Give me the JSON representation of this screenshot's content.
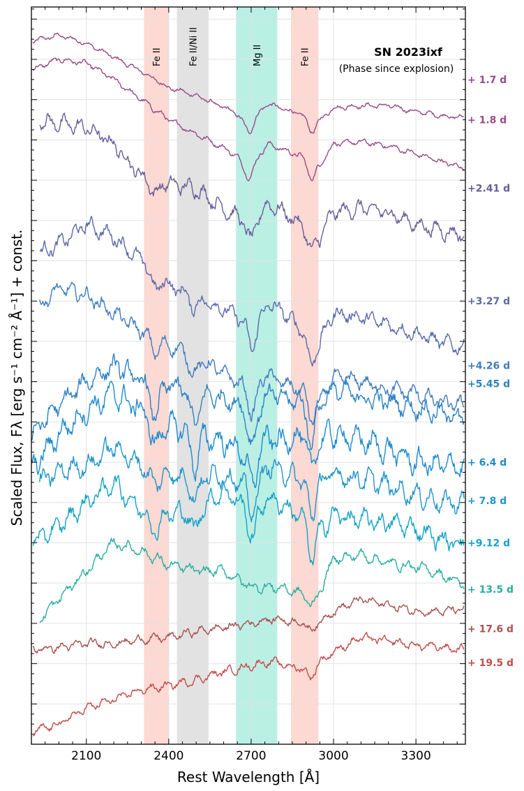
{
  "chart_data": {
    "type": "line",
    "title": "SN 2023ixf",
    "subtitle": "(Phase since explosion)",
    "xlabel": "Rest Wavelength [Å]",
    "ylabel": "Scaled Flux, Fλ [erg s⁻¹ cm⁻² Å⁻¹] + const.",
    "xlim": [
      1900,
      3480
    ],
    "ylim": [
      0,
      18.3
    ],
    "xticks": [
      2100,
      2400,
      2700,
      3000,
      3300
    ],
    "xtick_labels": [
      "2100",
      "2400",
      "2700",
      "3000",
      "3300"
    ],
    "grid": true,
    "bands": [
      {
        "label": "Fe II",
        "x0": 2310,
        "x1": 2400,
        "color": "#fbc9c1"
      },
      {
        "label": "Fe II/Ni II",
        "x0": 2430,
        "x1": 2545,
        "color": "#d6d6d6"
      },
      {
        "label": "Mg II",
        "x0": 2645,
        "x1": 2795,
        "color": "#9de8d8"
      },
      {
        "label": "Fe II",
        "x0": 2845,
        "x1": 2945,
        "color": "#fbc9c1"
      }
    ],
    "series": [
      {
        "name": "+ 1.7 d",
        "color": "#9a4c86",
        "x_start": 1905,
        "knots": [
          [
            1905,
            17.45
          ],
          [
            2000,
            17.6
          ],
          [
            2100,
            17.4
          ],
          [
            2200,
            17.05
          ],
          [
            2300,
            16.7
          ],
          [
            2400,
            16.3
          ],
          [
            2500,
            16.1
          ],
          [
            2600,
            15.8
          ],
          [
            2700,
            15.5
          ],
          [
            2760,
            15.9
          ],
          [
            2800,
            15.8
          ],
          [
            2900,
            15.6
          ],
          [
            2950,
            15.5
          ],
          [
            3000,
            15.8
          ],
          [
            3100,
            15.85
          ],
          [
            3200,
            15.85
          ],
          [
            3300,
            15.7
          ],
          [
            3400,
            15.6
          ],
          [
            3475,
            15.55
          ]
        ],
        "dips": [
          [
            2690,
            0.3,
            25
          ],
          [
            2920,
            0.35,
            20
          ]
        ],
        "noise": 0.07
      },
      {
        "name": "+ 1.8 d",
        "color": "#9a4c86",
        "x_start": 1905,
        "knots": [
          [
            1905,
            16.75
          ],
          [
            2000,
            17.0
          ],
          [
            2100,
            16.9
          ],
          [
            2200,
            16.5
          ],
          [
            2300,
            16.0
          ],
          [
            2400,
            15.5
          ],
          [
            2500,
            15.15
          ],
          [
            2600,
            14.8
          ],
          [
            2700,
            14.4
          ],
          [
            2760,
            14.9
          ],
          [
            2800,
            14.8
          ],
          [
            2900,
            14.55
          ],
          [
            2950,
            14.4
          ],
          [
            3000,
            14.9
          ],
          [
            3100,
            14.95
          ],
          [
            3200,
            14.85
          ],
          [
            3300,
            14.65
          ],
          [
            3400,
            14.45
          ],
          [
            3475,
            14.3
          ]
        ],
        "dips": [
          [
            2690,
            0.35,
            25
          ],
          [
            2920,
            0.45,
            20
          ]
        ],
        "noise": 0.08
      },
      {
        "name": "+2.41 d",
        "color": "#6a5d99",
        "x_start": 1930,
        "knots": [
          [
            1930,
            15.5
          ],
          [
            2000,
            15.4
          ],
          [
            2100,
            15.3
          ],
          [
            2200,
            14.9
          ],
          [
            2300,
            14.1
          ],
          [
            2400,
            13.9
          ],
          [
            2500,
            13.8
          ],
          [
            2600,
            13.3
          ],
          [
            2700,
            12.9
          ],
          [
            2760,
            13.4
          ],
          [
            2800,
            13.3
          ],
          [
            2900,
            12.8
          ],
          [
            2950,
            12.6
          ],
          [
            3000,
            13.2
          ],
          [
            3100,
            13.3
          ],
          [
            3200,
            13.2
          ],
          [
            3300,
            12.9
          ],
          [
            3400,
            12.75
          ],
          [
            3475,
            12.65
          ]
        ],
        "dips": [
          [
            2350,
            0.35,
            20
          ],
          [
            2700,
            0.4,
            22
          ],
          [
            2920,
            0.5,
            18
          ]
        ],
        "noise": 0.22
      },
      {
        "name": "+3.27 d",
        "color": "#5b6aa8",
        "x_start": 1930,
        "knots": [
          [
            1930,
            12.2
          ],
          [
            2000,
            12.4
          ],
          [
            2100,
            12.9
          ],
          [
            2200,
            12.6
          ],
          [
            2300,
            12.0
          ],
          [
            2400,
            11.4
          ],
          [
            2500,
            11.1
          ],
          [
            2600,
            10.8
          ],
          [
            2700,
            10.4
          ],
          [
            2760,
            10.9
          ],
          [
            2800,
            10.8
          ],
          [
            2900,
            10.2
          ],
          [
            2950,
            10.0
          ],
          [
            3000,
            10.7
          ],
          [
            3100,
            10.6
          ],
          [
            3200,
            10.4
          ],
          [
            3300,
            10.2
          ],
          [
            3400,
            9.95
          ],
          [
            3475,
            9.85
          ]
        ],
        "dips": [
          [
            2350,
            0.4,
            20
          ],
          [
            2490,
            0.3,
            20
          ],
          [
            2705,
            0.6,
            22
          ],
          [
            2920,
            0.7,
            18
          ]
        ],
        "noise": 0.22
      },
      {
        "name": "+4.26 d",
        "color": "#3f7cbe",
        "x_start": 1930,
        "knots": [
          [
            1930,
            10.9
          ],
          [
            2000,
            11.3
          ],
          [
            2100,
            11.15
          ],
          [
            2200,
            10.7
          ],
          [
            2300,
            10.25
          ],
          [
            2400,
            9.9
          ],
          [
            2500,
            9.6
          ],
          [
            2600,
            9.2
          ],
          [
            2700,
            8.8
          ],
          [
            2760,
            9.2
          ],
          [
            2800,
            9.0
          ],
          [
            2900,
            8.75
          ],
          [
            2950,
            8.5
          ],
          [
            3000,
            9.1
          ],
          [
            3100,
            9.0
          ],
          [
            3200,
            8.8
          ],
          [
            3300,
            8.7
          ],
          [
            3400,
            8.45
          ],
          [
            3475,
            8.4
          ]
        ],
        "dips": [
          [
            2350,
            0.35,
            20
          ],
          [
            2490,
            0.45,
            20
          ],
          [
            2705,
            0.6,
            22
          ],
          [
            2920,
            0.6,
            18
          ]
        ],
        "noise": 0.22
      },
      {
        "name": "+5.45 d",
        "color": "#2c82c4",
        "x_start": 1900,
        "knots": [
          [
            1900,
            7.7
          ],
          [
            2000,
            8.4
          ],
          [
            2100,
            9.0
          ],
          [
            2200,
            9.4
          ],
          [
            2300,
            9.0
          ],
          [
            2400,
            8.9
          ],
          [
            2500,
            8.7
          ],
          [
            2600,
            8.6
          ],
          [
            2700,
            8.3
          ],
          [
            2760,
            8.7
          ],
          [
            2800,
            8.6
          ],
          [
            2900,
            8.45
          ],
          [
            2950,
            8.5
          ],
          [
            3000,
            8.8
          ],
          [
            3100,
            8.6
          ],
          [
            3200,
            8.5
          ],
          [
            3300,
            8.35
          ],
          [
            3400,
            8.2
          ],
          [
            3475,
            8.1
          ]
        ],
        "dips": [
          [
            2350,
            0.8,
            22
          ],
          [
            2495,
            0.8,
            20
          ],
          [
            2705,
            0.9,
            22
          ],
          [
            2920,
            1.0,
            18
          ]
        ],
        "noise": 0.3
      },
      {
        "name": "+ 6.4 d",
        "color": "#1d8bcd",
        "x_start": 1900,
        "knots": [
          [
            1900,
            6.8
          ],
          [
            2000,
            7.7
          ],
          [
            2100,
            8.3
          ],
          [
            2200,
            8.7
          ],
          [
            2300,
            8.3
          ],
          [
            2400,
            7.9
          ],
          [
            2500,
            7.7
          ],
          [
            2600,
            7.5
          ],
          [
            2700,
            7.2
          ],
          [
            2760,
            7.6
          ],
          [
            2800,
            7.5
          ],
          [
            2900,
            7.7
          ],
          [
            2950,
            7.6
          ],
          [
            3000,
            7.7
          ],
          [
            3100,
            7.55
          ],
          [
            3200,
            7.3
          ],
          [
            3300,
            7.0
          ],
          [
            3400,
            6.9
          ],
          [
            3475,
            6.95
          ]
        ],
        "dips": [
          [
            2350,
            0.7,
            22
          ],
          [
            2495,
            0.8,
            20
          ],
          [
            2705,
            0.8,
            22
          ],
          [
            2920,
            0.9,
            18
          ]
        ],
        "noise": 0.35
      },
      {
        "name": "+ 7.8 d",
        "color": "#2195c9",
        "x_start": 1930,
        "knots": [
          [
            1930,
            6.5
          ],
          [
            2050,
            6.9
          ],
          [
            2100,
            6.9
          ],
          [
            2200,
            7.4
          ],
          [
            2300,
            6.9
          ],
          [
            2400,
            6.7
          ],
          [
            2500,
            6.6
          ],
          [
            2600,
            6.7
          ],
          [
            2700,
            6.4
          ],
          [
            2760,
            6.9
          ],
          [
            2800,
            6.8
          ],
          [
            2900,
            6.5
          ],
          [
            2950,
            6.5
          ],
          [
            3000,
            6.7
          ],
          [
            3100,
            6.6
          ],
          [
            3200,
            6.4
          ],
          [
            3300,
            6.2
          ],
          [
            3400,
            6.0
          ],
          [
            3475,
            6.0
          ]
        ],
        "dips": [
          [
            2350,
            0.4,
            20
          ],
          [
            2495,
            0.5,
            20
          ],
          [
            2705,
            0.7,
            22
          ],
          [
            2920,
            0.8,
            18
          ]
        ],
        "noise": 0.3
      },
      {
        "name": "+9.12 d",
        "color": "#13a3c6",
        "x_start": 1905,
        "knots": [
          [
            1905,
            5.0
          ],
          [
            2000,
            5.4
          ],
          [
            2100,
            6.0
          ],
          [
            2200,
            6.5
          ],
          [
            2300,
            5.8
          ],
          [
            2400,
            5.7
          ],
          [
            2500,
            5.8
          ],
          [
            2600,
            6.3
          ],
          [
            2700,
            5.8
          ],
          [
            2760,
            6.1
          ],
          [
            2800,
            6.0
          ],
          [
            2900,
            5.6
          ],
          [
            2950,
            5.3
          ],
          [
            3000,
            5.7
          ],
          [
            3100,
            5.55
          ],
          [
            3200,
            5.5
          ],
          [
            3300,
            5.35
          ],
          [
            3400,
            5.05
          ],
          [
            3475,
            5.0
          ]
        ],
        "dips": [
          [
            2350,
            0.5,
            20
          ],
          [
            2495,
            0.5,
            20
          ],
          [
            2705,
            0.7,
            22
          ],
          [
            2920,
            0.9,
            18
          ]
        ],
        "noise": 0.28
      },
      {
        "name": "+ 13.5 d",
        "color": "#2aae9f",
        "x_start": 1930,
        "knots": [
          [
            1930,
            3.1
          ],
          [
            2000,
            3.6
          ],
          [
            2100,
            4.3
          ],
          [
            2200,
            5.0
          ],
          [
            2300,
            4.8
          ],
          [
            2400,
            4.45
          ],
          [
            2500,
            4.3
          ],
          [
            2600,
            4.3
          ],
          [
            2700,
            3.9
          ],
          [
            2760,
            3.9
          ],
          [
            2800,
            3.9
          ],
          [
            2900,
            3.7
          ],
          [
            2950,
            3.8
          ],
          [
            3000,
            4.6
          ],
          [
            3100,
            4.7
          ],
          [
            3200,
            4.5
          ],
          [
            3300,
            4.4
          ],
          [
            3400,
            4.2
          ],
          [
            3475,
            3.95
          ]
        ],
        "dips": [
          [
            2920,
            0.3,
            18
          ]
        ],
        "noise": 0.15
      },
      {
        "name": "+ 17.6 d",
        "color": "#a55350",
        "x_start": 1905,
        "knots": [
          [
            1905,
            2.35
          ],
          [
            2000,
            2.4
          ],
          [
            2100,
            2.5
          ],
          [
            2200,
            2.5
          ],
          [
            2300,
            2.6
          ],
          [
            2400,
            2.65
          ],
          [
            2500,
            2.8
          ],
          [
            2600,
            2.9
          ],
          [
            2700,
            3.0
          ],
          [
            2760,
            3.1
          ],
          [
            2800,
            3.1
          ],
          [
            2900,
            3.0
          ],
          [
            2950,
            3.05
          ],
          [
            3000,
            3.3
          ],
          [
            3100,
            3.6
          ],
          [
            3200,
            3.45
          ],
          [
            3300,
            3.3
          ],
          [
            3400,
            3.3
          ],
          [
            3475,
            3.35
          ]
        ],
        "dips": [
          [
            2920,
            0.2,
            18
          ]
        ],
        "noise": 0.12
      },
      {
        "name": "+ 19.5 d",
        "color": "#c44c4c",
        "x_start": 1905,
        "knots": [
          [
            1905,
            0.3
          ],
          [
            2000,
            0.5
          ],
          [
            2100,
            0.9
          ],
          [
            2200,
            1.1
          ],
          [
            2300,
            1.35
          ],
          [
            2400,
            1.45
          ],
          [
            2500,
            1.6
          ],
          [
            2600,
            1.8
          ],
          [
            2700,
            1.95
          ],
          [
            2760,
            2.05
          ],
          [
            2800,
            2.0
          ],
          [
            2900,
            1.85
          ],
          [
            2950,
            2.05
          ],
          [
            3000,
            2.3
          ],
          [
            3100,
            2.65
          ],
          [
            3200,
            2.55
          ],
          [
            3300,
            2.45
          ],
          [
            3400,
            2.4
          ],
          [
            3475,
            2.35
          ]
        ],
        "dips": [
          [
            2920,
            0.25,
            18
          ]
        ],
        "noise": 0.12
      }
    ],
    "phase_label_y": [
      16.5,
      15.5,
      13.8,
      11.0,
      9.4,
      8.95,
      7.0,
      6.05,
      5.0,
      3.85,
      2.87,
      2.03
    ]
  }
}
